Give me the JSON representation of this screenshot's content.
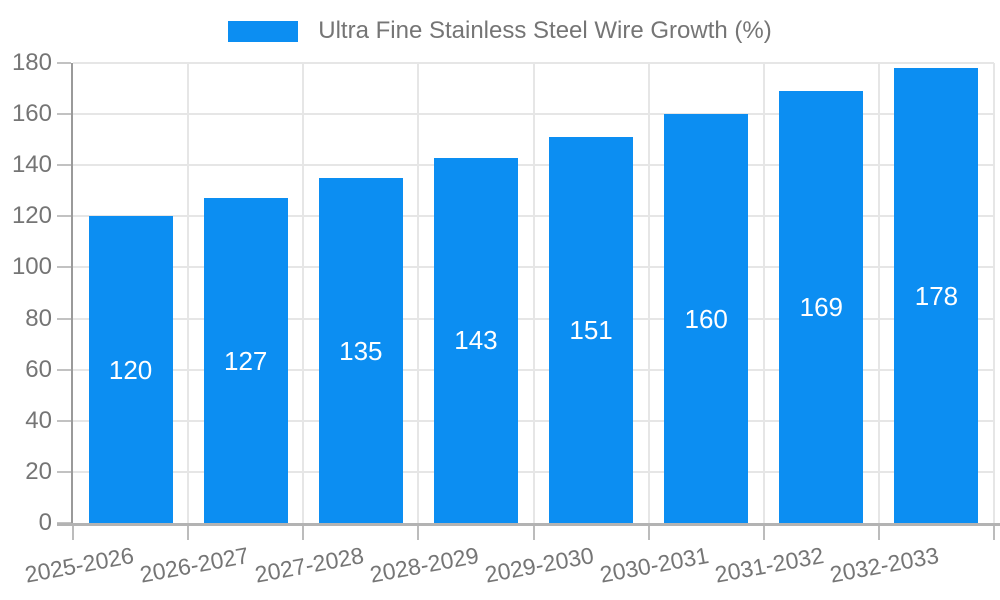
{
  "chart_data": {
    "type": "bar",
    "title": "Ultra Fine Stainless Steel Wire Growth (%)",
    "legend_position": "top",
    "categories": [
      "2025-2026",
      "2026-2027",
      "2027-2028",
      "2028-2029",
      "2029-2030",
      "2030-2031",
      "2031-2032",
      "2032-2033"
    ],
    "values": [
      120,
      127,
      135,
      143,
      151,
      160,
      169,
      178
    ],
    "xlabel": "",
    "ylabel": "",
    "ylim": [
      0,
      180
    ],
    "yticks": [
      0,
      20,
      40,
      60,
      80,
      100,
      120,
      140,
      160,
      180
    ],
    "grid": "on",
    "bar_color": "#0C8EF2",
    "bar_label_color": "#FFFFFF",
    "axis_text_color": "#757575",
    "x_tick_rotation_deg": -10.5
  },
  "legend": {
    "label": "Ultra Fine Stainless Steel Wire Growth (%)",
    "swatch_color": "#0C8EF2"
  }
}
